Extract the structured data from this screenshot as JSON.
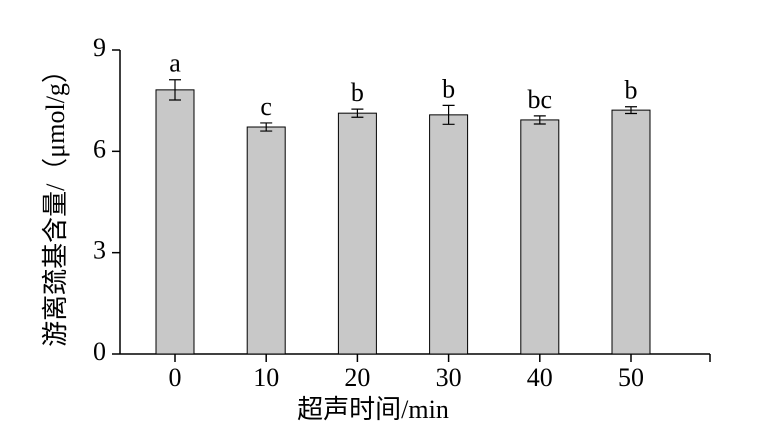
{
  "chart_data": {
    "type": "bar",
    "x_label": "超声时间/min",
    "y_label": "游离巯基含量/（μmol/g）",
    "categories": [
      "0",
      "10",
      "20",
      "30",
      "40",
      "50"
    ],
    "values": [
      7.82,
      6.72,
      7.13,
      7.08,
      6.93,
      7.22
    ],
    "errors": [
      0.3,
      0.12,
      0.12,
      0.28,
      0.12,
      0.1
    ],
    "significance_letters": [
      "a",
      "c",
      "b",
      "b",
      "bc",
      "b"
    ],
    "color": "#c8c8c8",
    "ylim": [
      0,
      9
    ],
    "yticks": [
      0,
      3,
      6,
      9
    ],
    "grid": false
  }
}
